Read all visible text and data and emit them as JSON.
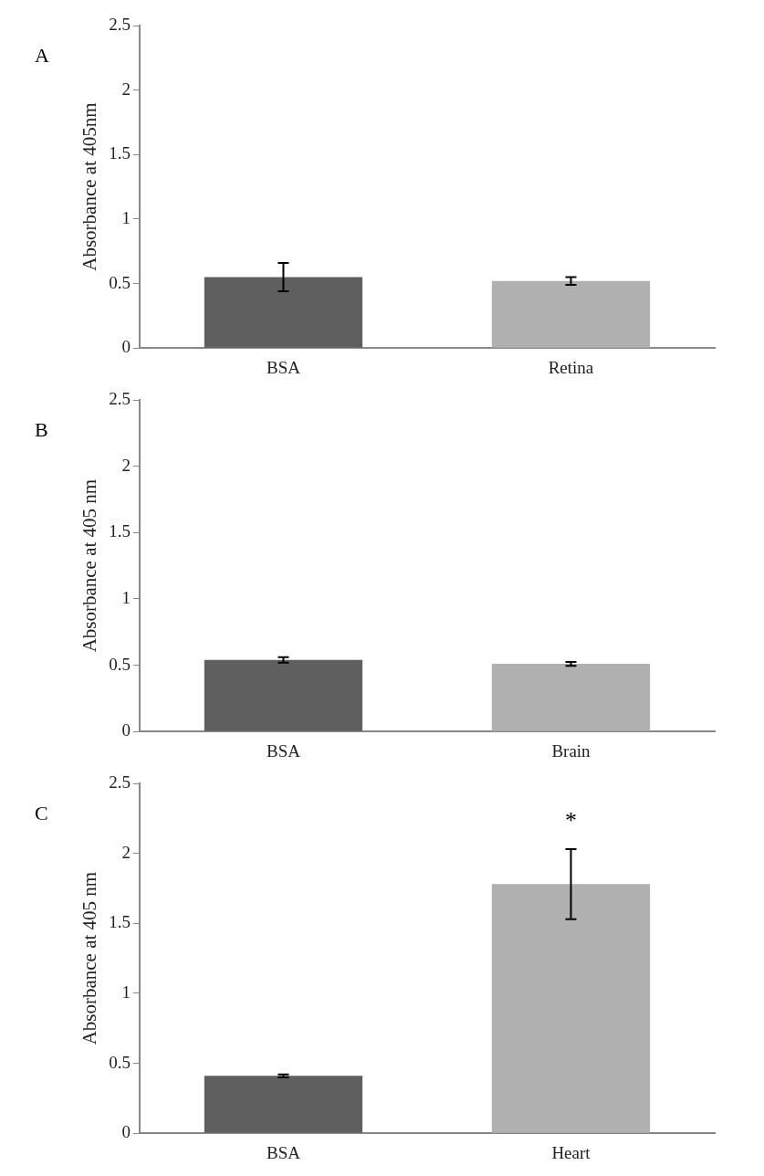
{
  "chart_data": [
    {
      "type": "bar",
      "title": "A",
      "ylabel": "Absorbance at 405nm",
      "categories": [
        "BSA",
        "Retina"
      ],
      "values": [
        0.55,
        0.52
      ],
      "errors": [
        0.11,
        0.03
      ],
      "colors": [
        "#5f5f5f",
        "#b0b0b0"
      ],
      "ylim": [
        0,
        2.5
      ],
      "yticks": [
        0,
        0.5,
        1,
        1.5,
        2,
        2.5
      ],
      "grid": false
    },
    {
      "type": "bar",
      "title": "B",
      "ylabel": "Absorbance at 405 nm",
      "categories": [
        "BSA",
        "Brain"
      ],
      "values": [
        0.54,
        0.51
      ],
      "errors": [
        0.02,
        0.015
      ],
      "colors": [
        "#5f5f5f",
        "#b0b0b0"
      ],
      "ylim": [
        0,
        2.5
      ],
      "yticks": [
        0,
        0.5,
        1,
        1.5,
        2,
        2.5
      ],
      "grid": false
    },
    {
      "type": "bar",
      "title": "C",
      "ylabel": "Absorbance at 405 nm",
      "categories": [
        "BSA",
        "Heart"
      ],
      "values": [
        0.41,
        1.78
      ],
      "errors": [
        0.01,
        0.25
      ],
      "colors": [
        "#5f5f5f",
        "#b0b0b0"
      ],
      "ylim": [
        0,
        2.5
      ],
      "yticks": [
        0,
        0.5,
        1,
        1.5,
        2,
        2.5
      ],
      "grid": false,
      "annotations": [
        "*"
      ]
    }
  ]
}
